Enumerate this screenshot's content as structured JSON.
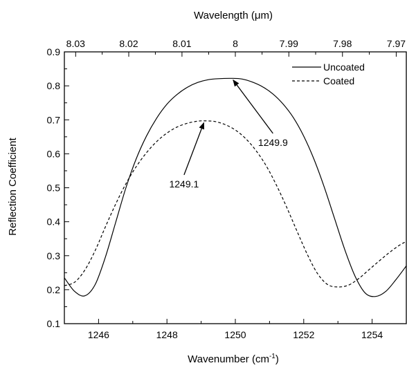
{
  "chart_data": {
    "type": "line",
    "title": "",
    "xlabel": "Wavenumber (cm",
    "xlabel_sup": "-1",
    "xlabel_end": ")",
    "x2label_pre": "Wavelength (",
    "x2label_mu": "μ",
    "x2label_post": "m)",
    "ylabel": "Reflection Coefficient",
    "xlim": [
      1245,
      1255
    ],
    "ylim": [
      0.1,
      0.9
    ],
    "xticks": [
      {
        "value": 1246,
        "label": "1246"
      },
      {
        "value": 1248,
        "label": "1248"
      },
      {
        "value": 1250,
        "label": "1250"
      },
      {
        "value": 1252,
        "label": "1252"
      },
      {
        "value": 1254,
        "label": "1254"
      }
    ],
    "yticks": [
      {
        "value": 0.1,
        "label": "0.1"
      },
      {
        "value": 0.2,
        "label": "0.2"
      },
      {
        "value": 0.3,
        "label": "0.3"
      },
      {
        "value": 0.4,
        "label": "0.4"
      },
      {
        "value": 0.5,
        "label": "0.5"
      },
      {
        "value": 0.6,
        "label": "0.6"
      },
      {
        "value": 0.7,
        "label": "0.7"
      },
      {
        "value": 0.8,
        "label": "0.8"
      },
      {
        "value": 0.9,
        "label": "0.9"
      }
    ],
    "x2ticks": [
      {
        "wavelength": 8.03,
        "label": "8.03"
      },
      {
        "wavelength": 8.02,
        "label": "8.02"
      },
      {
        "wavelength": 8.01,
        "label": "8.01"
      },
      {
        "wavelength": 8,
        "label": "8"
      },
      {
        "wavelength": 7.99,
        "label": "7.99"
      },
      {
        "wavelength": 7.98,
        "label": "7.98"
      },
      {
        "wavelength": 7.97,
        "label": "7.97"
      }
    ],
    "legend": {
      "position": "top-right"
    },
    "series": [
      {
        "name": "Uncoated",
        "style": "solid",
        "color": "#000000",
        "x": [
          1245.0,
          1245.3,
          1245.6,
          1245.9,
          1246.2,
          1246.5,
          1246.8,
          1247.1,
          1247.4,
          1247.7,
          1248.0,
          1248.3,
          1248.6,
          1248.9,
          1249.2,
          1249.5,
          1249.9,
          1250.2,
          1250.5,
          1250.8,
          1251.1,
          1251.4,
          1251.7,
          1252.0,
          1252.3,
          1252.6,
          1252.9,
          1253.2,
          1253.5,
          1253.8,
          1254.1,
          1254.4,
          1254.7,
          1255.0
        ],
        "y": [
          0.235,
          0.195,
          0.182,
          0.215,
          0.296,
          0.398,
          0.5,
          0.585,
          0.652,
          0.705,
          0.746,
          0.775,
          0.796,
          0.81,
          0.818,
          0.821,
          0.822,
          0.82,
          0.811,
          0.797,
          0.776,
          0.746,
          0.706,
          0.652,
          0.584,
          0.502,
          0.41,
          0.318,
          0.24,
          0.19,
          0.18,
          0.195,
          0.23,
          0.27
        ]
      },
      {
        "name": "Coated",
        "style": "dashed",
        "color": "#000000",
        "x": [
          1245.0,
          1245.3,
          1245.6,
          1245.9,
          1246.2,
          1246.5,
          1246.8,
          1247.1,
          1247.4,
          1247.7,
          1248.0,
          1248.3,
          1248.6,
          1248.9,
          1249.1,
          1249.4,
          1249.7,
          1250.0,
          1250.3,
          1250.6,
          1250.9,
          1251.2,
          1251.5,
          1251.8,
          1252.1,
          1252.4,
          1252.7,
          1253.0,
          1253.3,
          1253.6,
          1253.9,
          1254.2,
          1254.5,
          1254.8,
          1255.0
        ],
        "y": [
          0.212,
          0.222,
          0.258,
          0.315,
          0.385,
          0.452,
          0.512,
          0.562,
          0.603,
          0.636,
          0.661,
          0.679,
          0.69,
          0.696,
          0.697,
          0.695,
          0.686,
          0.67,
          0.645,
          0.61,
          0.565,
          0.508,
          0.443,
          0.373,
          0.305,
          0.248,
          0.215,
          0.208,
          0.213,
          0.232,
          0.258,
          0.284,
          0.309,
          0.331,
          0.342
        ]
      }
    ],
    "annotations": [
      {
        "text": "1249.9",
        "target_x": 1249.9,
        "target_y": 0.822,
        "text_x": 1251.1,
        "text_y": 0.66
      },
      {
        "text": "1249.1",
        "target_x": 1249.1,
        "target_y": 0.697,
        "text_x": 1248.5,
        "text_y": 0.538
      }
    ]
  }
}
